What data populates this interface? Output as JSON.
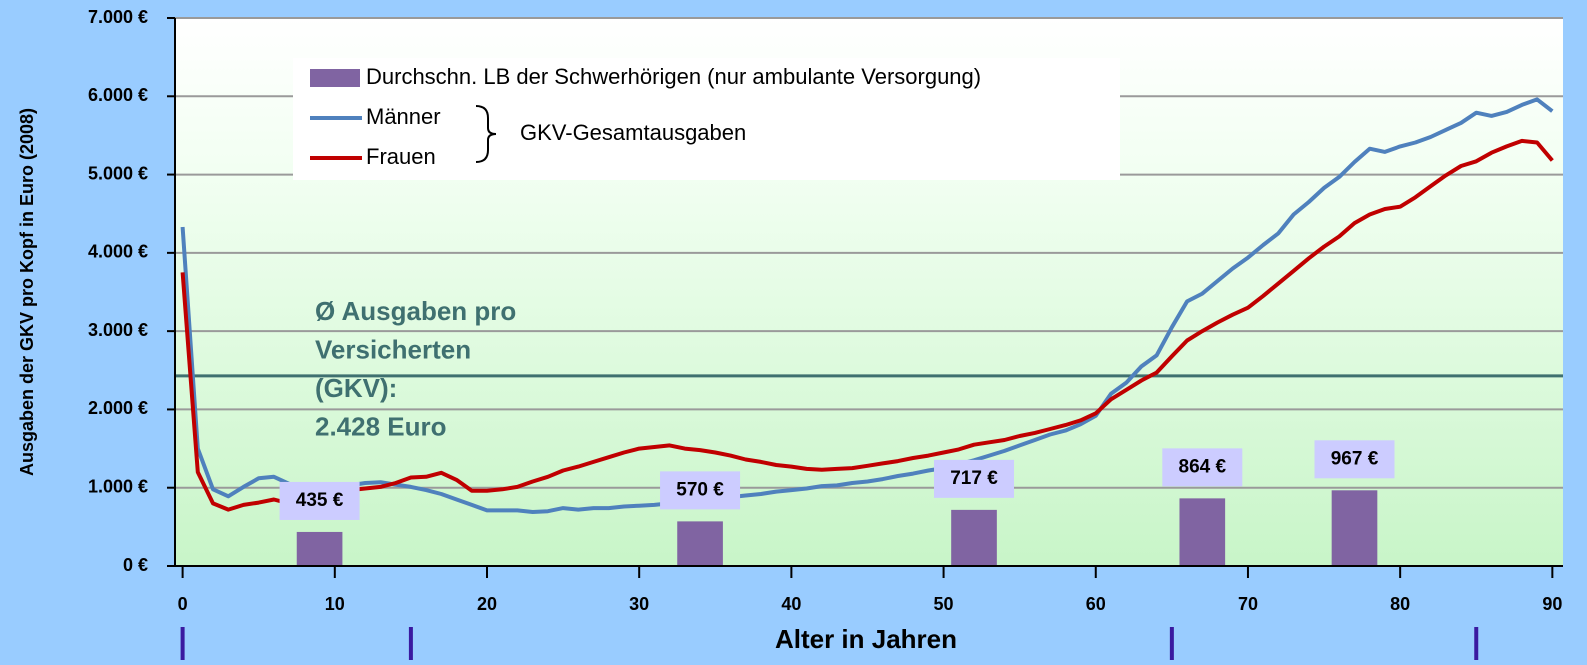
{
  "chart_data": {
    "type": "line",
    "y_axis_label": "Ausgaben der GKV pro Kopf in Euro (2008)",
    "x_axis_label": "Alter in Jahren",
    "xlim": [
      -0.5,
      90.7
    ],
    "ylim": [
      0,
      7000
    ],
    "xticks": [
      0,
      10,
      20,
      30,
      40,
      50,
      60,
      70,
      80,
      90
    ],
    "yticks": [
      {
        "value": 0,
        "label": "0 €"
      },
      {
        "value": 1000,
        "label": "1.000 €"
      },
      {
        "value": 2000,
        "label": "2.000 €"
      },
      {
        "value": 3000,
        "label": "3.000 €"
      },
      {
        "value": 4000,
        "label": "4.000 €"
      },
      {
        "value": 5000,
        "label": "5.000 €"
      },
      {
        "value": 6000,
        "label": "6.000 €"
      },
      {
        "value": 7000,
        "label": "7.000 €"
      }
    ],
    "grid": true,
    "x": [
      0,
      1,
      2,
      3,
      4,
      5,
      6,
      7,
      8,
      9,
      10,
      11,
      12,
      13,
      14,
      15,
      16,
      17,
      18,
      19,
      20,
      21,
      22,
      23,
      24,
      25,
      26,
      27,
      28,
      29,
      30,
      31,
      32,
      33,
      34,
      35,
      36,
      37,
      38,
      39,
      40,
      41,
      42,
      43,
      44,
      45,
      46,
      47,
      48,
      49,
      50,
      51,
      52,
      53,
      54,
      55,
      56,
      57,
      58,
      59,
      60,
      61,
      62,
      63,
      64,
      65,
      66,
      67,
      68,
      69,
      70,
      71,
      72,
      73,
      74,
      75,
      76,
      77,
      78,
      79,
      80,
      81,
      82,
      83,
      84,
      85,
      86,
      87,
      88,
      89,
      90
    ],
    "series": [
      {
        "name": "Männer",
        "color": "#4f81bd",
        "values": [
          4330,
          1500,
          980,
          890,
          1010,
          1120,
          1140,
          1050,
          960,
          980,
          1010,
          1030,
          1060,
          1070,
          1040,
          1010,
          970,
          920,
          850,
          780,
          710,
          710,
          710,
          690,
          700,
          740,
          720,
          740,
          740,
          760,
          770,
          780,
          800,
          820,
          830,
          870,
          880,
          900,
          920,
          950,
          970,
          990,
          1020,
          1030,
          1060,
          1080,
          1110,
          1150,
          1180,
          1220,
          1250,
          1300,
          1350,
          1410,
          1470,
          1540,
          1610,
          1680,
          1730,
          1810,
          1920,
          2200,
          2340,
          2550,
          2690,
          3050,
          3380,
          3480,
          3640,
          3800,
          3940,
          4100,
          4250,
          4490,
          4650,
          4830,
          4970,
          5160,
          5330,
          5290,
          5360,
          5410,
          5480,
          5570,
          5660,
          5790,
          5750,
          5800,
          5890,
          5960,
          5810
        ]
      },
      {
        "name": "Frauen",
        "color": "#c00000",
        "values": [
          3750,
          1200,
          800,
          720,
          780,
          810,
          850,
          800,
          870,
          920,
          950,
          970,
          990,
          1010,
          1060,
          1130,
          1140,
          1190,
          1100,
          960,
          960,
          980,
          1010,
          1080,
          1140,
          1220,
          1270,
          1330,
          1390,
          1450,
          1500,
          1520,
          1540,
          1500,
          1480,
          1450,
          1410,
          1360,
          1330,
          1290,
          1270,
          1240,
          1230,
          1240,
          1250,
          1280,
          1310,
          1340,
          1380,
          1410,
          1450,
          1490,
          1550,
          1580,
          1610,
          1660,
          1700,
          1750,
          1800,
          1860,
          1950,
          2130,
          2250,
          2370,
          2470,
          2680,
          2880,
          3000,
          3110,
          3210,
          3300,
          3450,
          3610,
          3770,
          3930,
          4080,
          4210,
          4380,
          4490,
          4560,
          4590,
          4710,
          4850,
          4990,
          5110,
          5170,
          5280,
          5360,
          5430,
          5410,
          5180
        ]
      }
    ],
    "bars": {
      "name": "Durchschn. LB der Schwerhörigen (nur ambulante Versorgung)",
      "color": "#8064a2",
      "label_color": "#ccccff",
      "x": [
        9,
        34,
        52,
        67,
        77
      ],
      "values": [
        435,
        570,
        717,
        864,
        967
      ],
      "value_labels": [
        "435 €",
        "570 €",
        "717 €",
        "864 €",
        "967 €"
      ]
    },
    "bracket_label": "GKV-Gesamtausgaben",
    "reference_line": {
      "value": 2428,
      "color": "#3f7070",
      "label_lines": [
        "Ø Ausgaben pro",
        "Versicherten",
        "(GKV):",
        "2.428 Euro"
      ]
    },
    "group_separators": [
      0,
      15,
      65,
      85
    ]
  }
}
